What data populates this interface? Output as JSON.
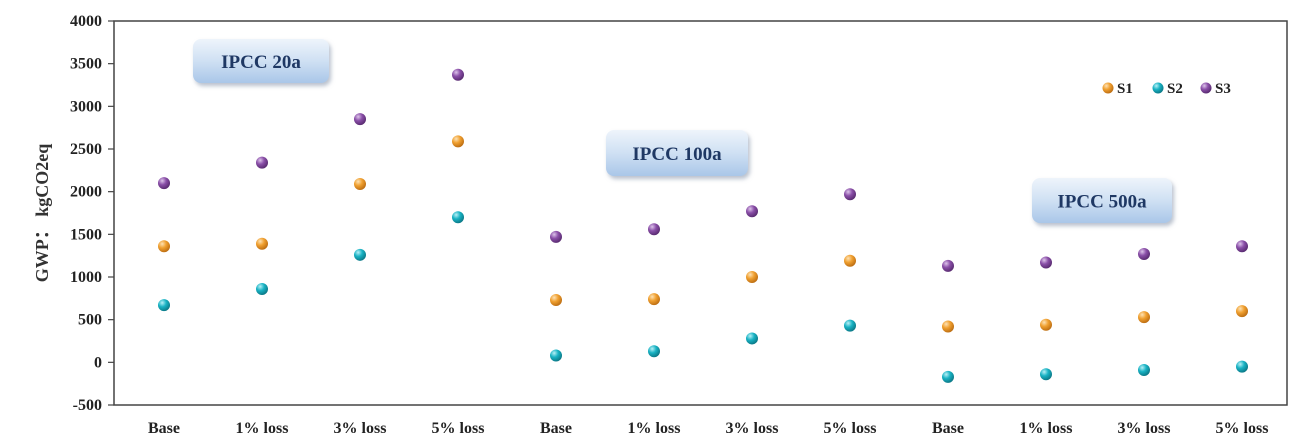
{
  "chart_data": {
    "type": "scatter",
    "ylabel": "GWP： kgCO2eq",
    "ylim": [
      -500,
      4000
    ],
    "yticks": [
      4000,
      3500,
      3000,
      2500,
      2000,
      1500,
      1000,
      500,
      0,
      -500
    ],
    "categories": [
      "Base",
      "1% loss",
      "3% loss",
      "5% loss",
      "Base",
      "1% loss",
      "3% loss",
      "5% loss",
      "Base",
      "1% loss",
      "3% loss",
      "5% loss"
    ],
    "groups": [
      {
        "label": "IPCC 20a",
        "start": 0,
        "end": 3
      },
      {
        "label": "IPCC 100a",
        "start": 4,
        "end": 7
      },
      {
        "label": "IPCC 500a",
        "start": 8,
        "end": 11
      }
    ],
    "series": [
      {
        "name": "S1",
        "color": "#f0a030",
        "values": [
          1360,
          1390,
          2090,
          2590,
          730,
          740,
          1000,
          1190,
          420,
          440,
          530,
          600
        ]
      },
      {
        "name": "S2",
        "color": "#19b3c4",
        "values": [
          670,
          860,
          1260,
          1700,
          80,
          130,
          280,
          430,
          -170,
          -140,
          -90,
          -50
        ]
      },
      {
        "name": "S3",
        "color": "#8a4fa8",
        "values": [
          2100,
          2340,
          2850,
          3370,
          1470,
          1560,
          1770,
          1970,
          1130,
          1170,
          1270,
          1360
        ]
      }
    ],
    "legend_position": "top-right",
    "grid": false
  }
}
